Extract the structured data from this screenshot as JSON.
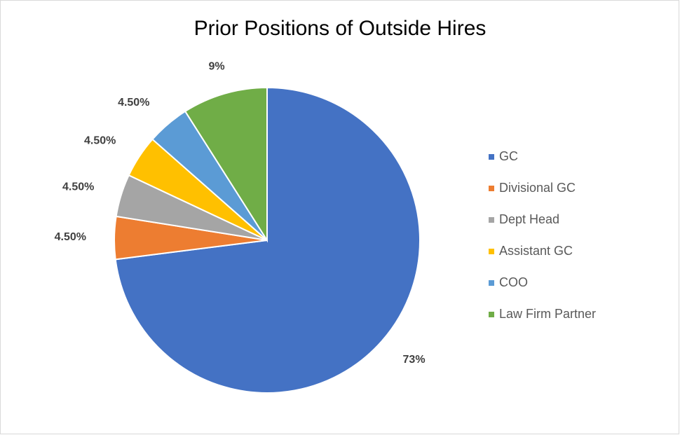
{
  "chart_data": {
    "type": "pie",
    "title": "Prior Positions of Outside Hires",
    "categories": [
      "GC",
      "Divisional GC",
      "Dept Head",
      "Assistant GC",
      "COO",
      "Law Firm Partner"
    ],
    "values": [
      73,
      4.5,
      4.5,
      4.5,
      4.5,
      9
    ],
    "value_labels": [
      "73%",
      "4.50%",
      "4.50%",
      "4.50%",
      "4.50%",
      "9%"
    ],
    "colors": [
      "#4472c4",
      "#ed7d31",
      "#a5a5a5",
      "#ffc000",
      "#5b9bd5",
      "#70ad47"
    ],
    "legend": "right"
  }
}
